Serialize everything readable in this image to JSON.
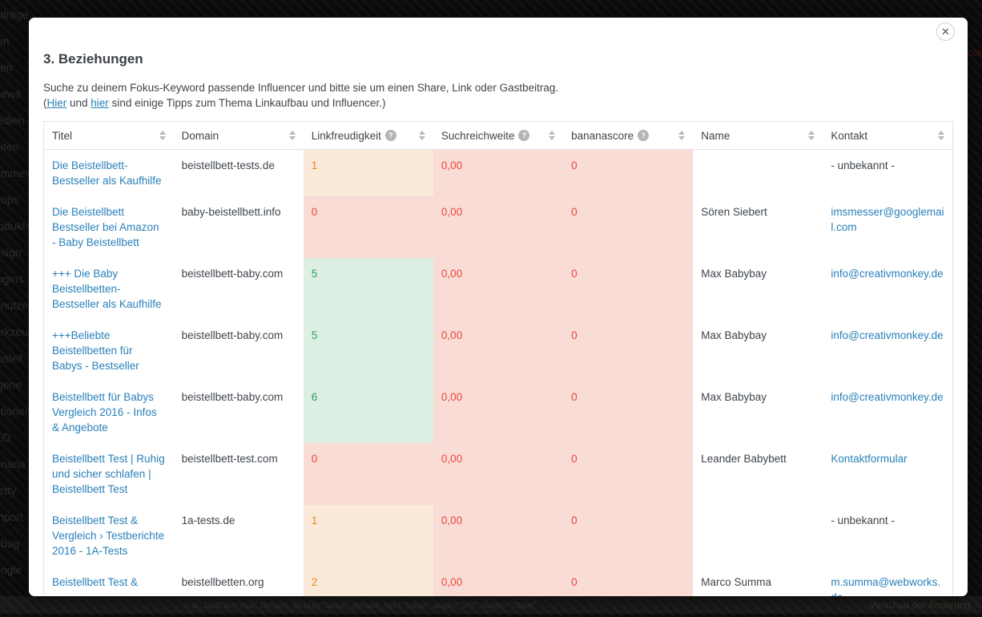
{
  "modal": {
    "title": "3. Beziehungen",
    "close_icon": "✕",
    "description_line1": "Suche zu deinem Fokus-Keyword passende Influencer und bitte sie um einen Share, Link oder Gastbeitrag.",
    "description_line2": {
      "prefix": "(",
      "link1": "Hier",
      "middle": " und ",
      "link2": "hier",
      "suffix": " sind einige Tipps zum Thema Linkaufbau und Influencer.)"
    }
  },
  "colors": {
    "link_blue": "#2980b9",
    "cell_orange_bg": "#fbe9da",
    "cell_orange_text": "#e8891e",
    "cell_red_bg": "#fadcd7",
    "cell_red_text": "#e8473a",
    "cell_green_bg": "#dcefe2",
    "cell_green_text": "#2da05f"
  },
  "table": {
    "headers": [
      {
        "label": "Titel",
        "help": false
      },
      {
        "label": "Domain",
        "help": false
      },
      {
        "label": "Linkfreudigkeit",
        "help": true
      },
      {
        "label": "Suchreichweite",
        "help": true
      },
      {
        "label": "bananascore",
        "help": true
      },
      {
        "label": "Name",
        "help": false
      },
      {
        "label": "Kontakt",
        "help": false
      }
    ],
    "rows": [
      {
        "title": "Die Beistellbett-Bestseller als Kaufhilfe",
        "domain": "beistellbett-tests.de",
        "linkfreudigkeit": "1",
        "lf_state": "orange",
        "suchreichweite": "0,00",
        "sr_state": "red",
        "bananascore": "0",
        "bs_state": "red",
        "name": "",
        "kontakt": "- unbekannt -",
        "kontakt_type": "plain"
      },
      {
        "title": "Die Beistellbett Bestseller bei Amazon - Baby Beistellbett",
        "domain": "baby-beistellbett.info",
        "linkfreudigkeit": "0",
        "lf_state": "red",
        "suchreichweite": "0,00",
        "sr_state": "red",
        "bananascore": "0",
        "bs_state": "red",
        "name": "Sören Siebert",
        "kontakt": "imsmesser@googlemail.com",
        "kontakt_type": "link"
      },
      {
        "title": "+++ Die Baby Beistellbetten-Bestseller als Kaufhilfe",
        "domain": "beistellbett-baby.com",
        "linkfreudigkeit": "5",
        "lf_state": "green",
        "suchreichweite": "0,00",
        "sr_state": "red",
        "bananascore": "0",
        "bs_state": "red",
        "name": "Max Babybay",
        "kontakt": "info@creativmonkey.de",
        "kontakt_type": "link"
      },
      {
        "title": "+++Beliebte Beistellbetten für Babys - Bestseller",
        "domain": "beistellbett-baby.com",
        "linkfreudigkeit": "5",
        "lf_state": "green",
        "suchreichweite": "0,00",
        "sr_state": "red",
        "bananascore": "0",
        "bs_state": "red",
        "name": "Max Babybay",
        "kontakt": "info@creativmonkey.de",
        "kontakt_type": "link"
      },
      {
        "title": "Beistellbett für Babys Vergleich 2016 - Infos & Angebote",
        "domain": "beistellbett-baby.com",
        "linkfreudigkeit": "6",
        "lf_state": "green",
        "suchreichweite": "0,00",
        "sr_state": "red",
        "bananascore": "0",
        "bs_state": "red",
        "name": "Max Babybay",
        "kontakt": "info@creativmonkey.de",
        "kontakt_type": "link"
      },
      {
        "title": "Beistellbett Test | Ruhig und sicher schlafen | Beistellbett Test",
        "domain": "beistellbett-test.com",
        "linkfreudigkeit": "0",
        "lf_state": "red",
        "suchreichweite": "0,00",
        "sr_state": "red",
        "bananascore": "0",
        "bs_state": "red",
        "name": "Leander Babybett",
        "kontakt": "Kontaktformular",
        "kontakt_type": "link"
      },
      {
        "title": "Beistellbett Test & Vergleich › Testberichte 2016 - 1A-Tests",
        "domain": "1a-tests.de",
        "linkfreudigkeit": "1",
        "lf_state": "orange",
        "suchreichweite": "0,00",
        "sr_state": "red",
        "bananascore": "0",
        "bs_state": "red",
        "name": "",
        "kontakt": "- unbekannt -",
        "kontakt_type": "plain"
      },
      {
        "title": "Beistellbett Test &",
        "domain": "beistellbetten.org",
        "linkfreudigkeit": "2",
        "lf_state": "orange",
        "suchreichweite": "0,00",
        "sr_state": "red",
        "bananascore": "0",
        "bs_state": "red",
        "name": "Marco Summa",
        "kontakt": "m.summa@webworks.de",
        "kontakt_type": "link"
      }
    ]
  },
  "background": {
    "sidebar_items": [
      "eiträge",
      "len",
      "tien",
      "gewä",
      "ledien",
      "eiten",
      "ommen",
      "hops",
      "rodukte",
      "esign",
      "lugins",
      "enutzer",
      "erkzeu",
      "instell",
      "igene",
      "ptionen",
      "EO",
      "anana",
      "retty",
      "mport",
      "ebug",
      "oogle"
    ],
    "shortcode_text": "h.w_button=\"rua\" details_fields=\"false\" details_tax=\"false\" align=\"left\" slider=\"false\"",
    "preview_button_text": "Vorschau der Änderung",
    "corner_text": "core"
  }
}
